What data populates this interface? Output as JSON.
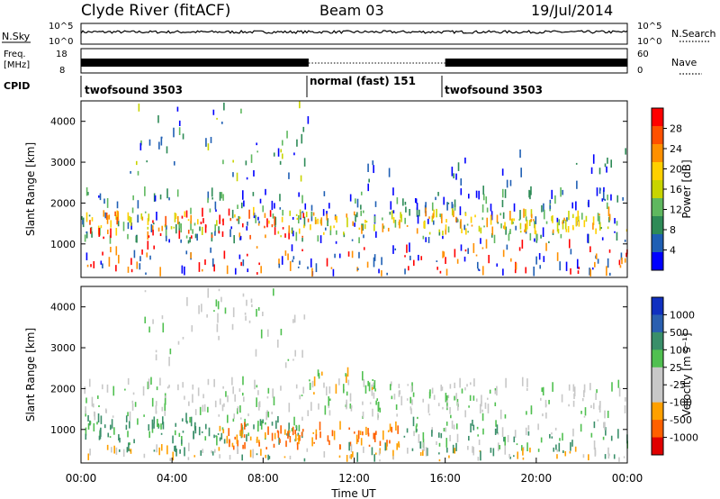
{
  "header": {
    "station": "Clyde River (fitACF)",
    "beam": "Beam 03",
    "date": "19/Jul/2014"
  },
  "strip_labels": {
    "nsky": "N.Sky",
    "freq_line1": "Freq.",
    "freq_line2": "[MHz]",
    "cpid": "CPID",
    "nsearch": "N.Search",
    "nave": "Nave",
    "nsky_ticks": [
      "10^5",
      "10^0"
    ],
    "freq_ticks": [
      "18",
      "8"
    ],
    "nsearch_ticks": [
      "10^5",
      "10^0"
    ],
    "nave_ticks": [
      "60",
      "0"
    ]
  },
  "cpid_segments": [
    {
      "label": "twofsound 3503",
      "start_h": 0,
      "end_h": 10
    },
    {
      "label": "normal (fast) 151",
      "start_h": 10,
      "end_h": 16
    },
    {
      "label": "twofsound 3503",
      "start_h": 16,
      "end_h": 24
    }
  ],
  "colors": {
    "power_scale": [
      "#0000ff",
      "#1f5fb4",
      "#2e8b57",
      "#5fb85f",
      "#c8d400",
      "#ffd000",
      "#ff9000",
      "#ff5000",
      "#ff0000"
    ],
    "velocity_scale": [
      "#e00000",
      "#ff6000",
      "#ffa000",
      "#c8c8c8",
      "#c8c8c8",
      "#50c050",
      "#3a8f6a",
      "#2a5fb0",
      "#1030c0"
    ],
    "grey": "#c8c8c8"
  },
  "chart_data": [
    {
      "type": "heatmap",
      "panel": "power",
      "xlabel": "",
      "ylabel": "Slant Range [km]",
      "xlim": [
        0,
        24
      ],
      "ylim": [
        180,
        4500
      ],
      "yticks": [
        1000,
        2000,
        3000,
        4000
      ],
      "colorbar_label": "Power [dB]",
      "colorbar_ticks": [
        "28",
        "24",
        "20",
        "16",
        "12",
        "8",
        "4"
      ],
      "colorbar_range": [
        0,
        32
      ]
    },
    {
      "type": "heatmap",
      "panel": "velocity",
      "xlabel": "Time UT",
      "ylabel": "Slant Range [km]",
      "xlim": [
        0,
        24
      ],
      "ylim": [
        180,
        4500
      ],
      "yticks": [
        1000,
        2000,
        3000,
        4000
      ],
      "xticks": [
        "00:00",
        "04:00",
        "08:00",
        "12:00",
        "16:00",
        "20:00",
        "00:00"
      ],
      "colorbar_label": "Velocity [m s⁻¹]",
      "colorbar_ticks": [
        "1000",
        "500",
        "100",
        "25",
        "-25",
        "-100",
        "-500",
        "-1000"
      ]
    }
  ]
}
